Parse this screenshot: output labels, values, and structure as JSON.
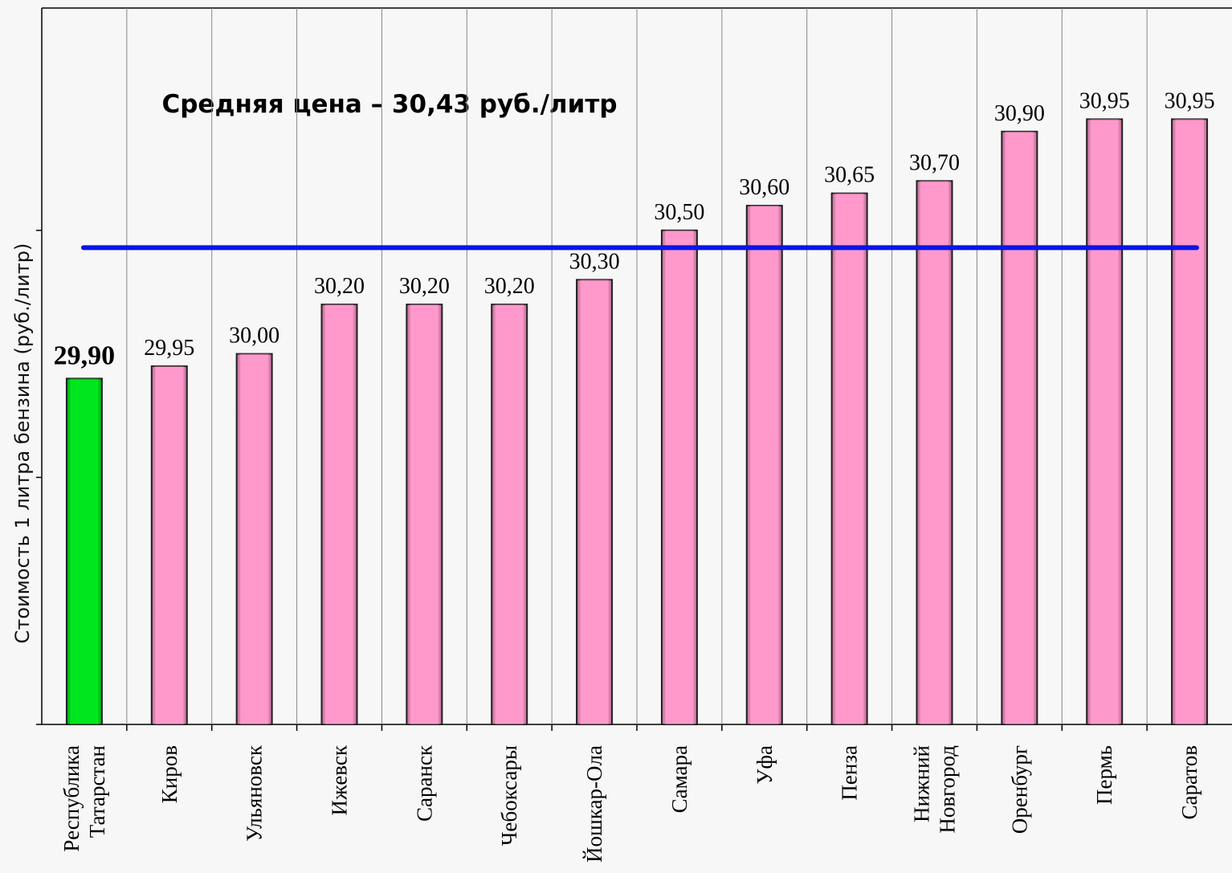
{
  "chart_data": {
    "type": "bar",
    "y_label": "Стоимость 1 литра бензина  (руб./литр)",
    "annotation": "Средняя цена – 30,43 руб./литр",
    "average": 30.43,
    "average_color": "#0a14e6",
    "categories": [
      "Республика\nТатарстан",
      "Киров",
      "Ульяновск",
      "Ижевск",
      "Саранск",
      "Чебоксары",
      "Йошкар-Ола",
      "Самара",
      "Уфа",
      "Пенза",
      "Нижний\nНовгород",
      "Оренбург",
      "Пермь",
      "Саратов"
    ],
    "values": [
      29.9,
      29.95,
      30.0,
      30.2,
      30.2,
      30.2,
      30.3,
      30.5,
      30.6,
      30.65,
      30.7,
      30.9,
      30.95,
      30.95
    ],
    "value_labels": [
      "29,90",
      "29,95",
      "30,00",
      "30,20",
      "30,20",
      "30,20",
      "30,30",
      "30,50",
      "30,60",
      "30,65",
      "30,70",
      "30,90",
      "30,95",
      "30,95"
    ],
    "colors": [
      "#00e61e",
      "#ff99cc",
      "#ff99cc",
      "#ff99cc",
      "#ff99cc",
      "#ff99cc",
      "#ff99cc",
      "#ff99cc",
      "#ff99cc",
      "#ff99cc",
      "#ff99cc",
      "#ff99cc",
      "#ff99cc",
      "#ff99cc"
    ],
    "ylim": [
      28.5,
      31.4
    ],
    "yticks": [
      28.5,
      29.5,
      30.5
    ]
  }
}
